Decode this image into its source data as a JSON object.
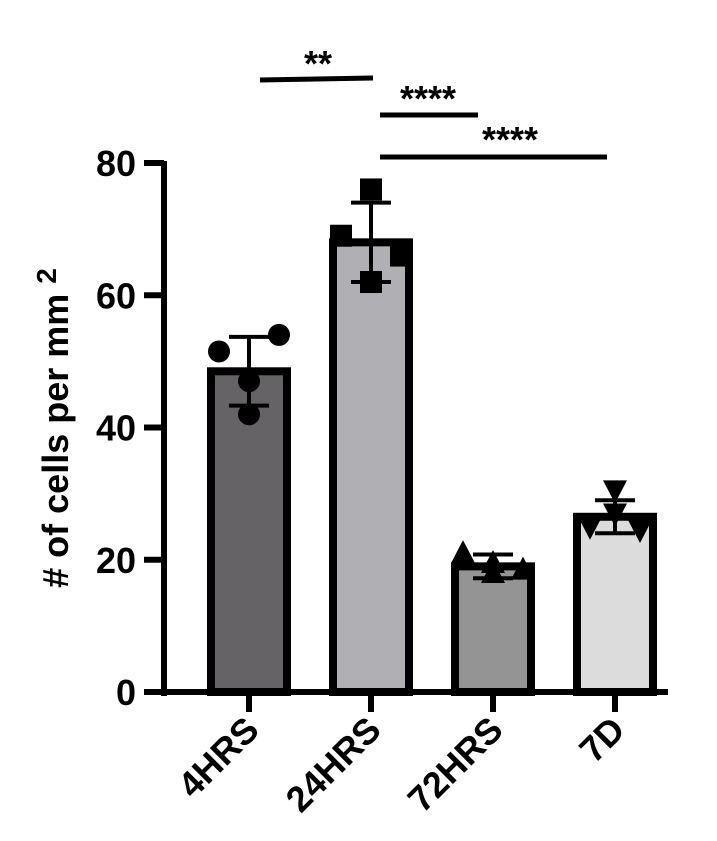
{
  "chart_data": {
    "type": "bar",
    "ylabel": "# of cells per mm",
    "ylabel_superscript": "2",
    "ylim": [
      0,
      80
    ],
    "yticks": [
      "0",
      "20",
      "40",
      "60",
      "80"
    ],
    "categories": [
      "4HRS",
      "24HRS",
      "72HRS",
      "7D"
    ],
    "values": [
      48.5,
      68,
      19,
      26.5
    ],
    "error": [
      5.2,
      6.0,
      1.8,
      2.5
    ],
    "bar_colors": [
      "#666366",
      "#b0afb3",
      "#949494",
      "#dcdcdc"
    ],
    "markers": [
      "circle",
      "square",
      "triangle-up",
      "triangle-down"
    ],
    "points": [
      [
        51.5,
        54,
        47,
        42
      ],
      [
        69,
        76,
        66,
        62
      ],
      [
        21,
        18,
        19.5,
        18.5
      ],
      [
        30.5,
        27,
        25,
        24.5
      ]
    ],
    "significance": [
      {
        "label": "**",
        "from": "4HRS",
        "to": "24HRS"
      },
      {
        "label": "****",
        "from": "24HRS",
        "to": "72HRS"
      },
      {
        "label": "****",
        "from": "24HRS",
        "to": "7D"
      }
    ]
  }
}
